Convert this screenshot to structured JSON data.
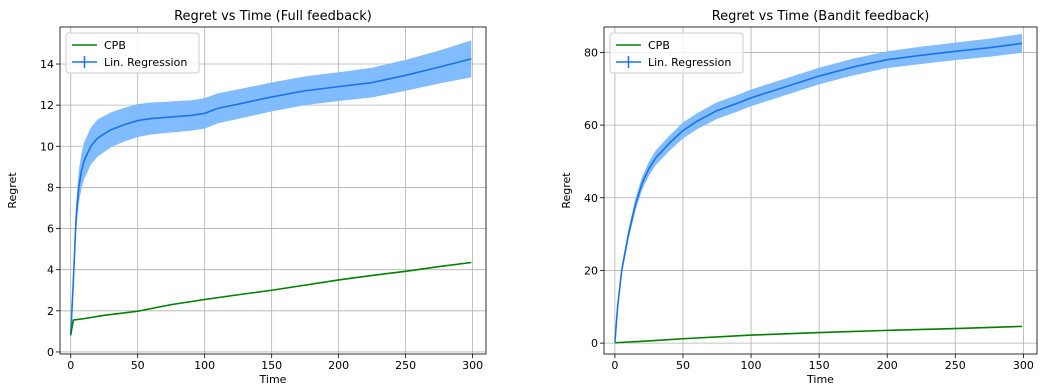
{
  "chart_data": [
    {
      "type": "line",
      "title": "Regret vs Time (Full feedback)",
      "xlabel": "Time",
      "ylabel": "Regret",
      "xlim": [
        -8,
        310
      ],
      "ylim": [
        -0.1,
        15.8
      ],
      "xticks": [
        0,
        50,
        100,
        150,
        200,
        250,
        300
      ],
      "yticks": [
        0,
        2,
        4,
        6,
        8,
        10,
        12,
        14
      ],
      "grid": true,
      "legend": "upper left",
      "series": [
        {
          "name": "CPB",
          "color": "#008000",
          "has_error_band": false,
          "x": [
            0,
            2,
            10,
            25,
            50,
            75,
            100,
            125,
            150,
            175,
            200,
            225,
            250,
            275,
            299
          ],
          "y": [
            0.85,
            1.55,
            1.62,
            1.78,
            1.98,
            2.3,
            2.55,
            2.78,
            3.0,
            3.25,
            3.5,
            3.72,
            3.92,
            4.15,
            4.35
          ]
        },
        {
          "name": "Lin. Regression",
          "color": "#1a73e8",
          "band_color": "#79b8ff",
          "has_error_band": true,
          "x": [
            0,
            2,
            4,
            6,
            8,
            10,
            15,
            20,
            30,
            40,
            50,
            60,
            70,
            80,
            90,
            100,
            110,
            125,
            150,
            175,
            200,
            225,
            250,
            275,
            299
          ],
          "y": [
            0.8,
            3.5,
            6.5,
            8.0,
            8.8,
            9.3,
            10.0,
            10.4,
            10.8,
            11.05,
            11.25,
            11.35,
            11.4,
            11.45,
            11.5,
            11.6,
            11.85,
            12.05,
            12.4,
            12.7,
            12.9,
            13.1,
            13.45,
            13.85,
            14.25
          ],
          "err": [
            0.1,
            0.5,
            0.7,
            0.8,
            0.85,
            0.9,
            0.9,
            0.9,
            0.85,
            0.82,
            0.8,
            0.78,
            0.76,
            0.75,
            0.74,
            0.74,
            0.73,
            0.72,
            0.7,
            0.7,
            0.7,
            0.72,
            0.75,
            0.8,
            0.9
          ]
        }
      ]
    },
    {
      "type": "line",
      "title": "Regret vs Time (Bandit feedback)",
      "xlabel": "Time",
      "ylabel": "Regret",
      "xlim": [
        -8,
        310
      ],
      "ylim": [
        -3,
        87
      ],
      "xticks": [
        0,
        50,
        100,
        150,
        200,
        250,
        300
      ],
      "yticks": [
        0,
        20,
        40,
        60,
        80
      ],
      "grid": true,
      "legend": "upper left",
      "series": [
        {
          "name": "CPB",
          "color": "#008000",
          "has_error_band": false,
          "x": [
            0,
            10,
            25,
            50,
            100,
            150,
            200,
            250,
            299
          ],
          "y": [
            0.1,
            0.3,
            0.6,
            1.2,
            2.2,
            2.9,
            3.5,
            4.0,
            4.6
          ]
        },
        {
          "name": "Lin. Regression",
          "color": "#1a73e8",
          "band_color": "#79b8ff",
          "has_error_band": true,
          "x": [
            0,
            2,
            5,
            10,
            15,
            20,
            25,
            30,
            40,
            50,
            60,
            75,
            90,
            100,
            125,
            150,
            175,
            200,
            225,
            250,
            275,
            299
          ],
          "y": [
            0.2,
            10.0,
            20.0,
            30.0,
            38.0,
            44.0,
            48.0,
            51.0,
            55.0,
            58.5,
            61.0,
            64.0,
            66.0,
            67.5,
            70.5,
            73.5,
            76.0,
            78.0,
            79.2,
            80.3,
            81.3,
            82.5
          ],
          "err": [
            0.2,
            1.0,
            1.3,
            1.5,
            1.7,
            1.8,
            1.9,
            2.0,
            2.1,
            2.2,
            2.2,
            2.3,
            2.3,
            2.3,
            2.3,
            2.3,
            2.3,
            2.3,
            2.4,
            2.4,
            2.5,
            2.6
          ]
        }
      ]
    }
  ]
}
